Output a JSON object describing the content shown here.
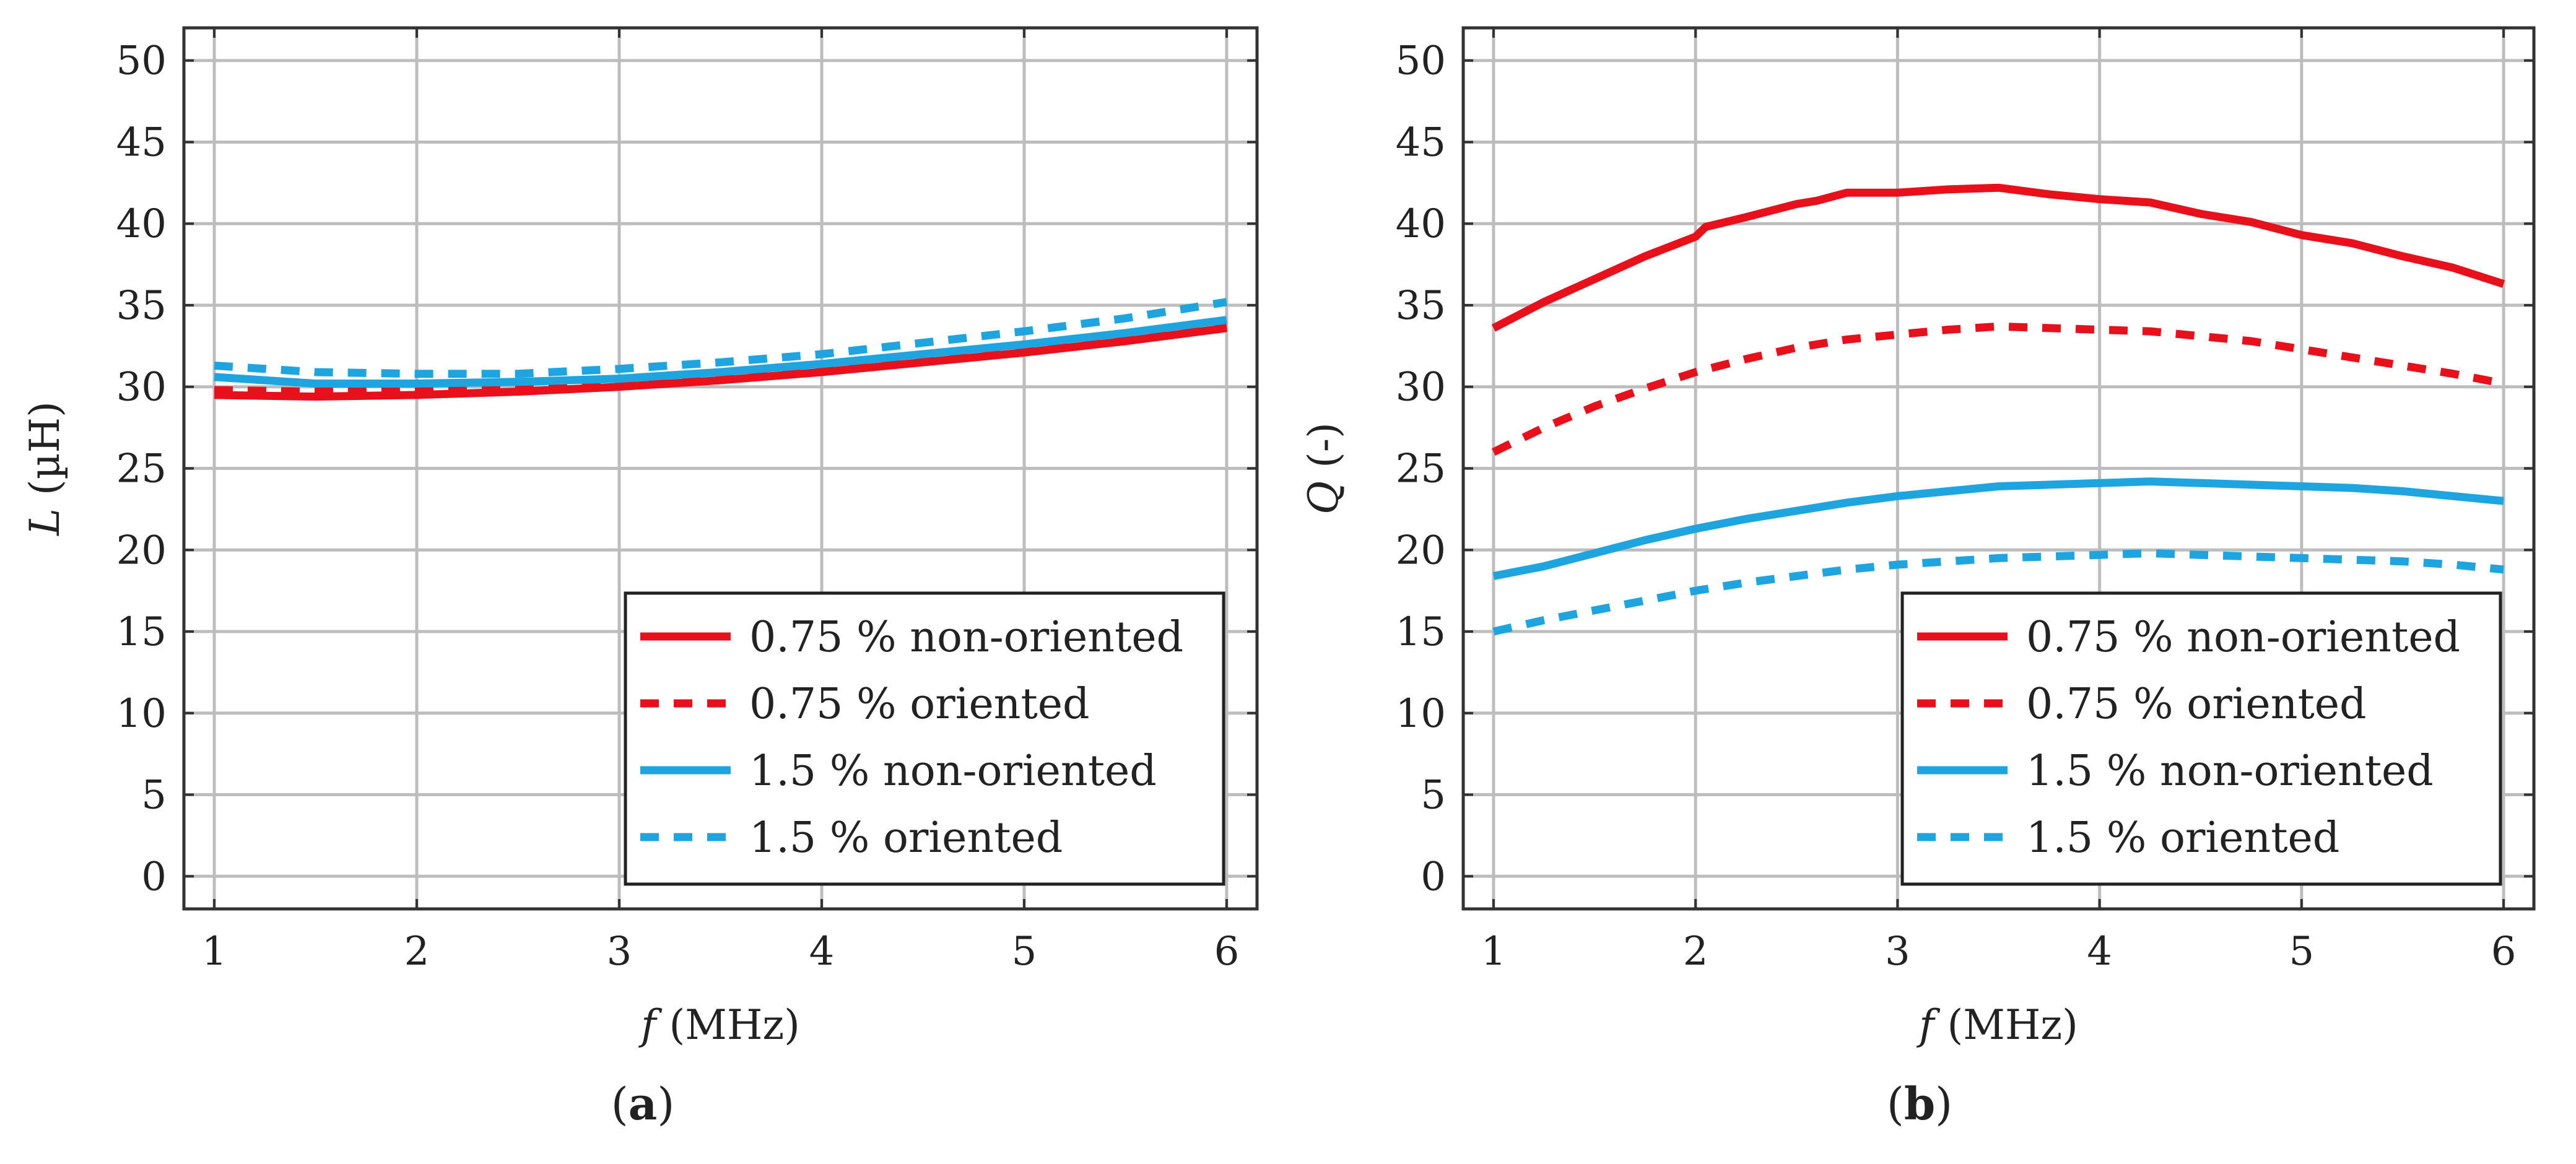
{
  "chart_data": [
    {
      "type": "line",
      "panel_label": "(a)",
      "xlabel": "f (MHz)",
      "xlabel_var": "f",
      "xlabel_unit": "(MHz)",
      "ylabel": "L (µH)",
      "ylabel_var": "L",
      "ylabel_unit": "(µH)",
      "xlim": [
        0.85,
        6.15
      ],
      "ylim": [
        -2,
        52
      ],
      "xticks": [
        1,
        2,
        3,
        4,
        5,
        6
      ],
      "yticks": [
        0,
        5,
        10,
        15,
        20,
        25,
        30,
        35,
        40,
        45,
        50
      ],
      "grid": true,
      "legend_position": "bottom-right",
      "series": [
        {
          "name": "0.75 % non-oriented",
          "color": "#e8101a",
          "style": "solid",
          "x": [
            1,
            1.5,
            2,
            2.5,
            3,
            3.5,
            4,
            4.5,
            5,
            5.5,
            6
          ],
          "values": [
            29.5,
            29.4,
            29.5,
            29.7,
            30.0,
            30.4,
            30.9,
            31.5,
            32.1,
            32.8,
            33.6
          ]
        },
        {
          "name": "0.75 % oriented",
          "color": "#e8101a",
          "style": "dashed",
          "x": [
            1,
            1.5,
            2,
            2.5,
            3,
            3.5,
            4,
            4.5,
            5,
            5.5,
            6
          ],
          "values": [
            29.8,
            29.7,
            29.8,
            30.0,
            30.2,
            30.6,
            31.0,
            31.6,
            32.2,
            32.9,
            33.7
          ]
        },
        {
          "name": "1.5 % non-oriented",
          "color": "#1ea5e0",
          "style": "solid",
          "x": [
            1,
            1.5,
            2,
            2.5,
            3,
            3.5,
            4,
            4.5,
            5,
            5.5,
            6
          ],
          "values": [
            30.6,
            30.2,
            30.2,
            30.3,
            30.5,
            30.9,
            31.4,
            32.0,
            32.6,
            33.3,
            34.1
          ]
        },
        {
          "name": "1.5 % oriented",
          "color": "#1ea5e0",
          "style": "dashed",
          "x": [
            1,
            1.5,
            2,
            2.5,
            3,
            3.5,
            4,
            4.5,
            5,
            5.5,
            6
          ],
          "values": [
            31.3,
            30.9,
            30.8,
            30.8,
            31.1,
            31.5,
            32.0,
            32.7,
            33.4,
            34.2,
            35.2
          ]
        }
      ]
    },
    {
      "type": "line",
      "panel_label": "(b)",
      "xlabel": "f (MHz)",
      "xlabel_var": "f",
      "xlabel_unit": "(MHz)",
      "ylabel": "Q (-)",
      "ylabel_var": "Q",
      "ylabel_unit": "(-)",
      "xlim": [
        0.85,
        6.15
      ],
      "ylim": [
        -2,
        52
      ],
      "xticks": [
        1,
        2,
        3,
        4,
        5,
        6
      ],
      "yticks": [
        0,
        5,
        10,
        15,
        20,
        25,
        30,
        35,
        40,
        45,
        50
      ],
      "grid": true,
      "legend_position": "bottom-right",
      "series": [
        {
          "name": "0.75 % non-oriented",
          "color": "#e8101a",
          "style": "solid",
          "x": [
            1,
            1.25,
            1.5,
            1.75,
            2,
            2.05,
            2.25,
            2.5,
            2.6,
            2.75,
            3,
            3.25,
            3.5,
            3.75,
            4,
            4.25,
            4.5,
            4.75,
            5,
            5.25,
            5.5,
            5.75,
            6
          ],
          "values": [
            33.6,
            35.2,
            36.6,
            38.0,
            39.2,
            39.8,
            40.4,
            41.2,
            41.4,
            41.9,
            41.9,
            42.1,
            42.2,
            41.8,
            41.5,
            41.3,
            40.6,
            40.1,
            39.3,
            38.8,
            38.0,
            37.3,
            36.3
          ]
        },
        {
          "name": "0.75 % oriented",
          "color": "#e8101a",
          "style": "dashed",
          "x": [
            1,
            1.25,
            1.5,
            1.75,
            2,
            2.25,
            2.5,
            2.75,
            3,
            3.25,
            3.5,
            3.75,
            4,
            4.25,
            4.5,
            4.75,
            5,
            5.25,
            5.5,
            5.75,
            6
          ],
          "values": [
            26.0,
            27.5,
            28.8,
            29.9,
            30.9,
            31.7,
            32.4,
            32.9,
            33.2,
            33.5,
            33.7,
            33.6,
            33.5,
            33.4,
            33.1,
            32.8,
            32.3,
            31.8,
            31.3,
            30.8,
            30.2
          ]
        },
        {
          "name": "1.5 % non-oriented",
          "color": "#1ea5e0",
          "style": "solid",
          "x": [
            1,
            1.25,
            1.5,
            1.75,
            2,
            2.25,
            2.5,
            2.75,
            3,
            3.25,
            3.5,
            3.75,
            4,
            4.25,
            4.5,
            4.75,
            5,
            5.25,
            5.5,
            5.75,
            6
          ],
          "values": [
            18.4,
            19.0,
            19.8,
            20.6,
            21.3,
            21.9,
            22.4,
            22.9,
            23.3,
            23.6,
            23.9,
            24.0,
            24.1,
            24.2,
            24.1,
            24.0,
            23.9,
            23.8,
            23.6,
            23.3,
            23.0
          ]
        },
        {
          "name": "1.5 % oriented",
          "color": "#1ea5e0",
          "style": "dashed",
          "x": [
            1,
            1.25,
            1.5,
            1.75,
            2,
            2.25,
            2.5,
            2.75,
            3,
            3.25,
            3.5,
            3.75,
            4,
            4.25,
            4.5,
            4.75,
            5,
            5.25,
            5.5,
            5.75,
            6
          ],
          "values": [
            15.0,
            15.7,
            16.3,
            16.9,
            17.5,
            18.0,
            18.4,
            18.8,
            19.1,
            19.3,
            19.5,
            19.6,
            19.7,
            19.8,
            19.7,
            19.6,
            19.5,
            19.4,
            19.3,
            19.1,
            18.8
          ]
        }
      ]
    }
  ]
}
